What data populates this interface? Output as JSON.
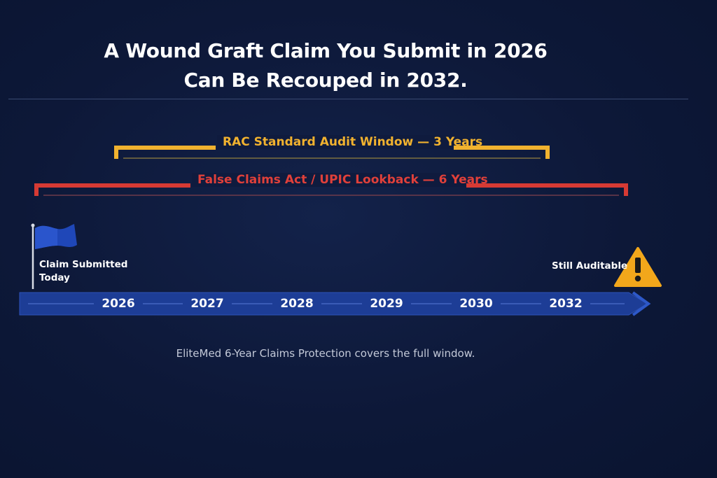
{
  "title": {
    "line1": "A Wound Graft Claim You Submit in 2026",
    "line2": "Can Be Recouped in 2032."
  },
  "windows": {
    "rac": {
      "label": "RAC Standard Audit Window — 3 Years",
      "color": "#f1b22f"
    },
    "fca": {
      "label": "False Claims Act / UPIC Lookback — 6 Years",
      "color": "#e0403a"
    }
  },
  "timeline": {
    "years": [
      "2026",
      "2027",
      "2028",
      "2029",
      "2030",
      "2032"
    ],
    "bar_color": "#1d3d96"
  },
  "start_marker": {
    "icon": "flag-icon",
    "label": "Claim Submitted Today"
  },
  "end_marker": {
    "icon": "warning-icon",
    "label": "Still Auditable",
    "color": "#f2a71b"
  },
  "footnote": "EliteMed 6-Year Claims Protection covers the full window."
}
